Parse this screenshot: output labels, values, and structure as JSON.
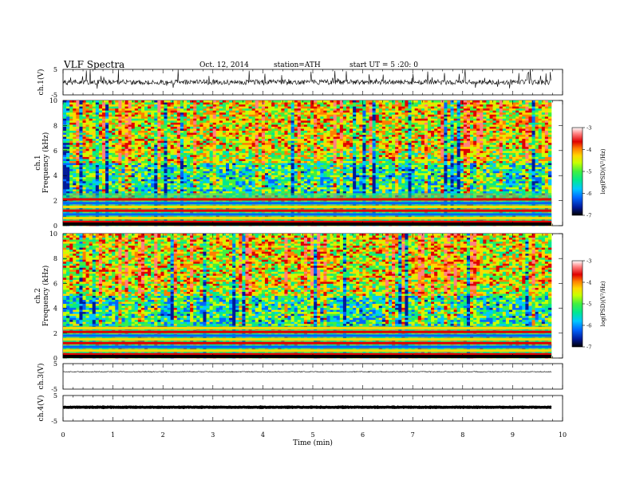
{
  "header": {
    "title": "VLF Spectra",
    "date": "Oct. 12, 2014",
    "station": "station=ATH",
    "start": "start UT = 5 :20: 0"
  },
  "time_axis": {
    "label": "Time (min)",
    "ticks": [
      "0",
      "1",
      "2",
      "3",
      "4",
      "5",
      "6",
      "7",
      "8",
      "9",
      "10"
    ],
    "range": [
      0,
      10
    ]
  },
  "waveform_axis": {
    "ticks": [
      "5",
      "-5"
    ],
    "range": [
      -5,
      5
    ]
  },
  "freq_axis": {
    "ticks": [
      "0",
      "2",
      "4",
      "6",
      "8",
      "10"
    ],
    "range": [
      0,
      10
    ],
    "unit_label": "Frequency (kHz)"
  },
  "colorbar": {
    "ticks": [
      "-3",
      "-4",
      "-5",
      "-6",
      "-7"
    ],
    "label": "log(PSD)(V²/Hz)",
    "range": [
      -7,
      -3
    ],
    "colors": [
      "#000000",
      "#001a99",
      "#0066ff",
      "#00c8ff",
      "#00e890",
      "#40f040",
      "#c8ff00",
      "#ffd700",
      "#ff7f00",
      "#e00000",
      "#ff8080",
      "#ffffff"
    ]
  },
  "panels": [
    {
      "id": "wave1",
      "label": "ch.1(V)"
    },
    {
      "id": "spec1",
      "label": "ch.1",
      "sublabel": "Frequency (kHz)"
    },
    {
      "id": "spec2",
      "label": "ch.2",
      "sublabel": "Frequency (kHz)"
    },
    {
      "id": "wave3",
      "label": "ch.3(V)"
    },
    {
      "id": "wave4",
      "label": "ch.4(V)"
    }
  ],
  "chart_data": [
    {
      "type": "line",
      "title": "VLF Spectra",
      "ylabel": "ch.1(V)",
      "xlabel": "Time (min)",
      "xlim": [
        0,
        9.8
      ],
      "ylim": [
        -5,
        5
      ],
      "series": [
        {
          "baseline": 0.0,
          "noise": "large",
          "values_desc": "noisy waveform around 0 V with spikes"
        }
      ]
    },
    {
      "type": "heatmap",
      "ylabel": "ch.1 Frequency (kHz)",
      "xlim": [
        0,
        9.8
      ],
      "ylim": [
        0,
        10
      ],
      "zlim": [
        -7,
        -3
      ],
      "bands_khz": [
        0.3,
        0.6,
        0.9,
        1.2,
        1.5,
        1.8,
        2.1
      ]
    },
    {
      "type": "heatmap",
      "ylabel": "ch.2 Frequency (kHz)",
      "xlim": [
        0,
        9.8
      ],
      "ylim": [
        0,
        10
      ],
      "zlim": [
        -7,
        -3
      ],
      "bands_khz": [
        0.3,
        0.6,
        0.9,
        1.2,
        1.5,
        1.8,
        2.1,
        2.4
      ]
    },
    {
      "type": "line",
      "ylabel": "ch.3(V)",
      "xlim": [
        0,
        9.8
      ],
      "ylim": [
        -5,
        5
      ],
      "series": [
        {
          "baseline": 1.8,
          "noise": "small"
        }
      ]
    },
    {
      "type": "line",
      "ylabel": "ch.4(V)",
      "xlim": [
        0,
        9.8
      ],
      "ylim": [
        -5,
        5
      ],
      "series": [
        {
          "baseline": 0.4,
          "noise": "thick"
        }
      ]
    }
  ]
}
